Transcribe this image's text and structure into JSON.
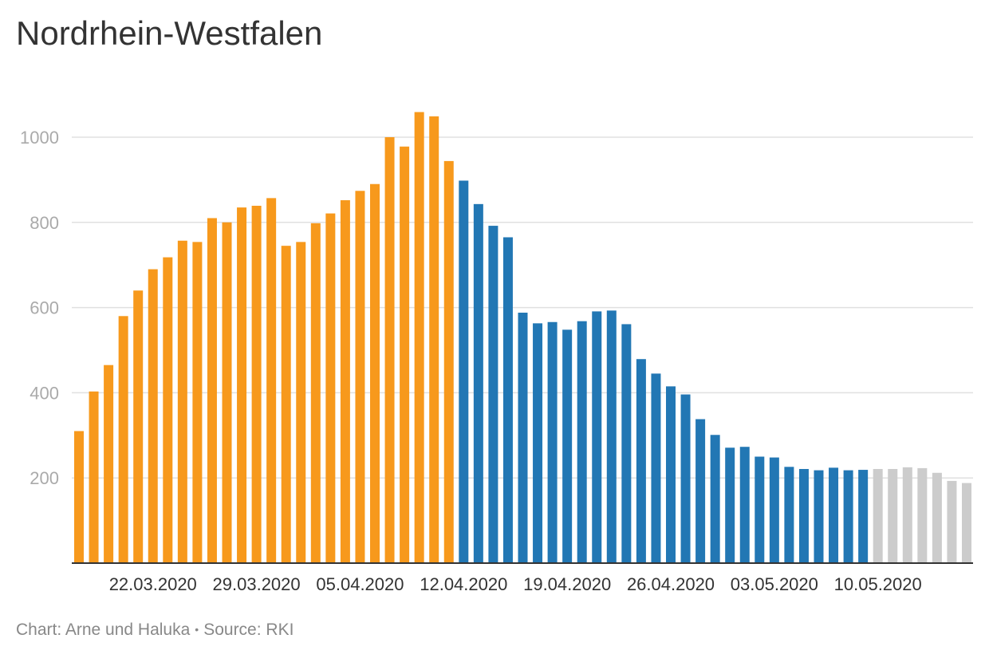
{
  "title": "Nordrhein-Westfalen",
  "footer": {
    "credit": "Chart: Arne und Haluka",
    "separator": "•",
    "source": "Source: RKI"
  },
  "chart_data": {
    "type": "bar",
    "ylim": [
      0,
      1000
    ],
    "yticks": [
      200,
      400,
      600,
      800,
      1000
    ],
    "grid": true,
    "xtick_labels": [
      "22.03.2020",
      "29.03.2020",
      "05.04.2020",
      "12.04.2020",
      "19.04.2020",
      "26.04.2020",
      "03.05.2020",
      "10.05.2020"
    ],
    "xtick_indices": [
      5,
      12,
      19,
      26,
      33,
      40,
      47,
      54
    ],
    "colors": {
      "orange": "#f7991c",
      "blue": "#2277b4",
      "grey": "#cccccc",
      "grid": "#e0e0e0",
      "axis": "#333333",
      "ticks": "#aaaaaa",
      "xticks": "#333333"
    },
    "values": [
      310,
      403,
      465,
      580,
      640,
      690,
      718,
      757,
      754,
      810,
      800,
      835,
      839,
      857,
      745,
      754,
      798,
      821,
      852,
      874,
      890,
      1000,
      978,
      1059,
      1049,
      944,
      898,
      843,
      792,
      765,
      588,
      563,
      566,
      548,
      568,
      591,
      593,
      561,
      479,
      445,
      415,
      396,
      338,
      301,
      271,
      273,
      250,
      248,
      226,
      221,
      218,
      224,
      218,
      219,
      221,
      221,
      225,
      223,
      212,
      193,
      188
    ],
    "bar_colors": [
      "orange",
      "orange",
      "orange",
      "orange",
      "orange",
      "orange",
      "orange",
      "orange",
      "orange",
      "orange",
      "orange",
      "orange",
      "orange",
      "orange",
      "orange",
      "orange",
      "orange",
      "orange",
      "orange",
      "orange",
      "orange",
      "orange",
      "orange",
      "orange",
      "orange",
      "orange",
      "blue",
      "blue",
      "blue",
      "blue",
      "blue",
      "blue",
      "blue",
      "blue",
      "blue",
      "blue",
      "blue",
      "blue",
      "blue",
      "blue",
      "blue",
      "blue",
      "blue",
      "blue",
      "blue",
      "blue",
      "blue",
      "blue",
      "blue",
      "blue",
      "blue",
      "blue",
      "blue",
      "blue",
      "grey",
      "grey",
      "grey",
      "grey",
      "grey",
      "grey",
      "grey"
    ]
  }
}
